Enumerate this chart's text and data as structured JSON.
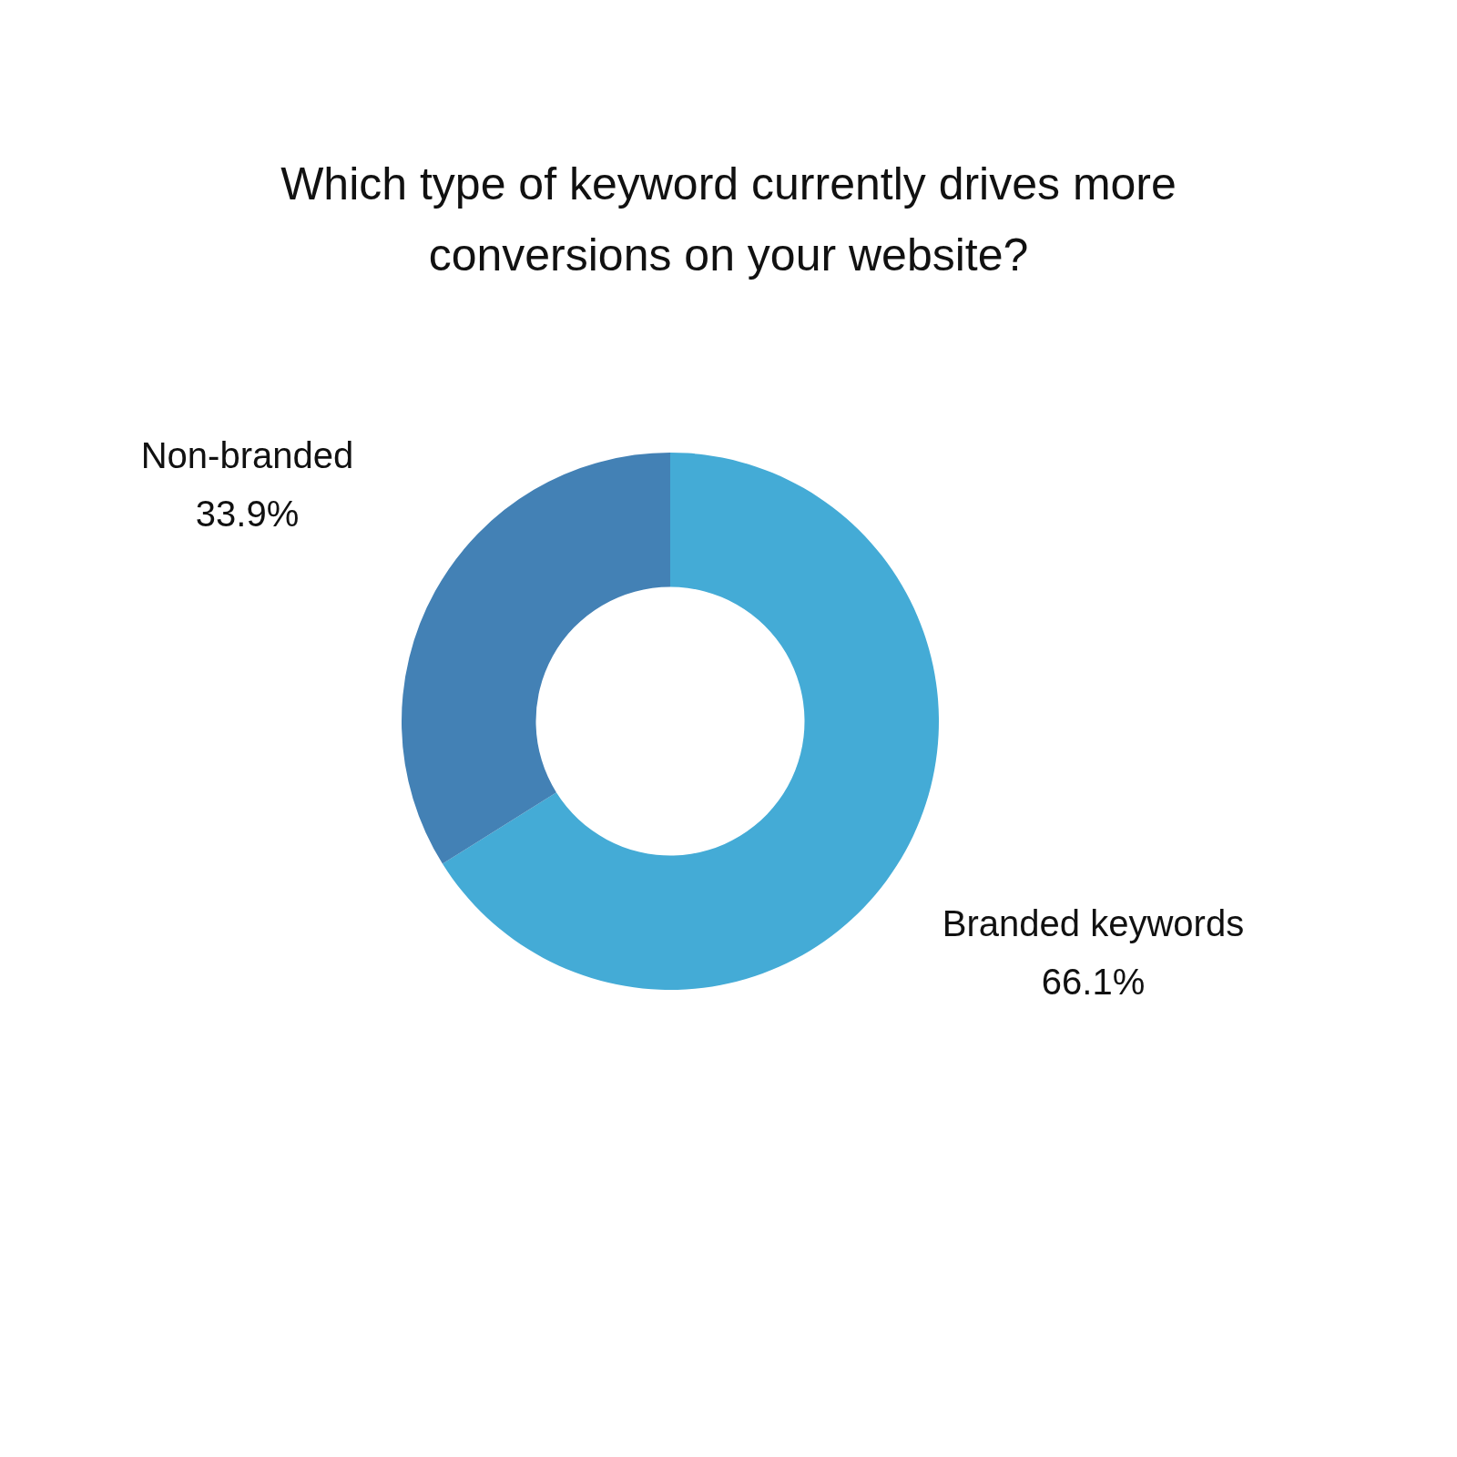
{
  "chart_data": {
    "type": "donut",
    "title": "Which type of keyword currently drives more conversions on your website?",
    "categories": [
      "Branded keywords",
      "Non-branded"
    ],
    "values": [
      66.1,
      33.9
    ],
    "value_labels": [
      "66.1%",
      "33.9%"
    ],
    "colors": [
      "#44abd6",
      "#4381b5"
    ],
    "legend": false
  }
}
